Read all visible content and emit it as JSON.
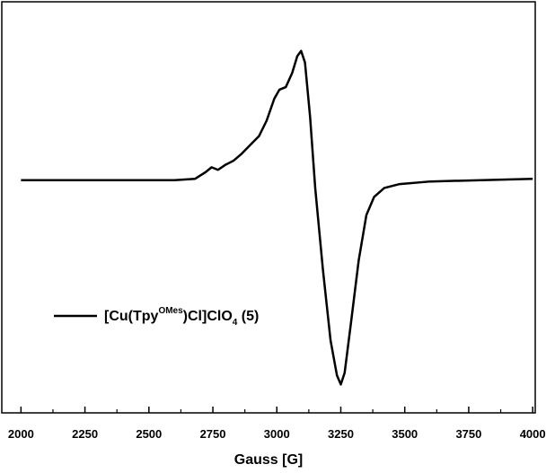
{
  "chart_data": {
    "type": "line",
    "x_label": "Gauss [G]",
    "x": [
      2000,
      2600,
      2680,
      2720,
      2745,
      2770,
      2800,
      2830,
      2860,
      2900,
      2930,
      2960,
      2990,
      3010,
      3035,
      3060,
      3080,
      3095,
      3110,
      3130,
      3150,
      3180,
      3210,
      3235,
      3250,
      3265,
      3290,
      3320,
      3350,
      3380,
      3420,
      3480,
      3600,
      3800,
      4000
    ],
    "series": [
      {
        "name": [
          "[Cu(Tpy",
          "OMes",
          ")Cl]ClO",
          "4",
          " (5)"
        ],
        "color": "#000000",
        "values": [
          0,
          0,
          0.01,
          0.06,
          0.1,
          0.08,
          0.12,
          0.15,
          0.2,
          0.28,
          0.34,
          0.46,
          0.63,
          0.7,
          0.72,
          0.83,
          0.96,
          1.0,
          0.91,
          0.49,
          -0.06,
          -0.69,
          -1.24,
          -1.51,
          -1.58,
          -1.49,
          -1.1,
          -0.62,
          -0.27,
          -0.13,
          -0.06,
          -0.03,
          -0.01,
          0,
          0.01
        ]
      }
    ],
    "xlim": [
      1925,
      4010
    ],
    "xticks": [
      2000,
      2250,
      2500,
      2750,
      3000,
      3250,
      3500,
      3750,
      4000
    ],
    "xticks_minor": [
      2125,
      2375,
      2625,
      2875,
      3125,
      3375,
      3625,
      3875
    ],
    "ylim": [
      -1.8,
      1.38
    ],
    "legend": "lower-left"
  }
}
